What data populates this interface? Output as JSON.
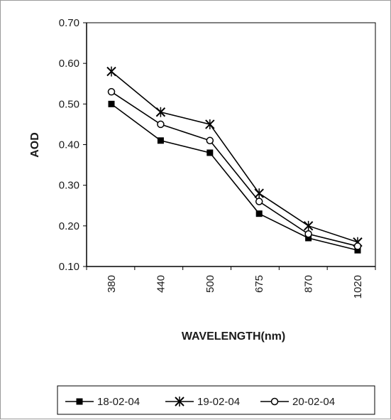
{
  "chart_data": {
    "type": "line",
    "title": "",
    "xlabel": "WAVELENGTH(nm)",
    "ylabel": "AOD",
    "categories": [
      "380",
      "440",
      "500",
      "675",
      "870",
      "1020"
    ],
    "ylim": [
      0.1,
      0.7
    ],
    "yticks": [
      "0.70",
      "0.60",
      "0.50",
      "0.40",
      "0.30",
      "0.20",
      "0.10"
    ],
    "grid": false,
    "legend_position": "bottom",
    "series": [
      {
        "name": "18-02-04",
        "marker": "filled-square",
        "color": "#000000",
        "values": [
          0.5,
          0.41,
          0.38,
          0.23,
          0.17,
          0.14
        ]
      },
      {
        "name": "19-02-04",
        "marker": "asterisk",
        "color": "#000000",
        "values": [
          0.58,
          0.48,
          0.45,
          0.28,
          0.2,
          0.16
        ]
      },
      {
        "name": "20-02-04",
        "marker": "open-circle",
        "color": "#000000",
        "values": [
          0.53,
          0.45,
          0.41,
          0.26,
          0.18,
          0.15
        ]
      }
    ]
  }
}
